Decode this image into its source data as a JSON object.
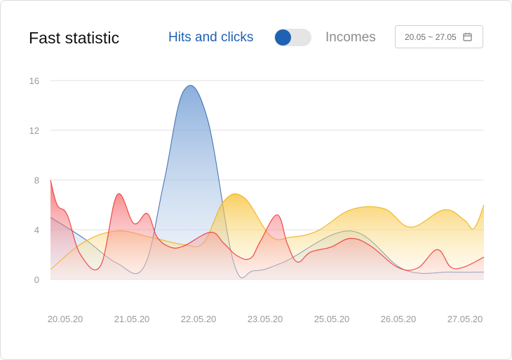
{
  "header": {
    "title": "Fast statistic",
    "toggle_left_label": "Hits and clicks",
    "toggle_right_label": "Incomes",
    "toggle_state": "left",
    "date_range": "20.05 ~ 27.05"
  },
  "icons": {
    "date_picker": "calendar-icon"
  },
  "colors": {
    "accent": "#1f61b2",
    "blue_series": "#6e9bd3",
    "yellow_series": "#f6c02e",
    "red_series": "#f25050"
  },
  "chart_data": {
    "type": "area",
    "title": "",
    "xlabel": "",
    "ylabel": "",
    "x_ticks": [
      "20.05.20",
      "21.05.20",
      "22.05.20",
      "23.05.20",
      "25.05.20",
      "26.05.20",
      "27.05.20"
    ],
    "y_ticks": [
      0,
      4,
      8,
      12,
      16
    ],
    "ylim": [
      0,
      16
    ],
    "grid": true,
    "legend": "none",
    "series": [
      {
        "color": "#6e9bd3",
        "x": [
          0,
          0.5,
          1,
          1.4,
          1.7,
          2.0,
          2.35,
          2.75,
          3.05,
          3.5,
          4.5,
          5.3,
          6.0,
          6.5
        ],
        "values": [
          5.0,
          3.3,
          1.3,
          1.0,
          7.8,
          15.2,
          13.0,
          1.3,
          0.7,
          1.4,
          3.9,
          0.8,
          0.6,
          0.6
        ]
      },
      {
        "color": "#f6c02e",
        "x": [
          0,
          0.5,
          1,
          1.5,
          2.0,
          2.3,
          2.6,
          2.9,
          3.3,
          3.6,
          4.0,
          4.5,
          5.0,
          5.4,
          5.9,
          6.2,
          6.35,
          6.5
        ],
        "values": [
          0.8,
          3.0,
          3.9,
          3.4,
          2.8,
          3.0,
          6.3,
          6.6,
          3.5,
          3.4,
          3.9,
          5.6,
          5.7,
          4.2,
          5.6,
          4.8,
          4.1,
          6.0
        ]
      },
      {
        "color": "#f25050",
        "x": [
          0,
          0.1,
          0.25,
          0.45,
          0.75,
          1.0,
          1.25,
          1.45,
          1.6,
          1.8,
          2.0,
          2.4,
          2.6,
          2.8,
          3.0,
          3.15,
          3.4,
          3.55,
          3.7,
          3.9,
          4.2,
          4.5,
          4.8,
          5.2,
          5.5,
          5.8,
          6.0,
          6.2,
          6.5
        ],
        "values": [
          8.0,
          6.0,
          5.2,
          2.0,
          1.1,
          6.8,
          4.5,
          5.3,
          3.4,
          2.6,
          2.7,
          3.8,
          2.9,
          1.9,
          1.7,
          3.1,
          5.2,
          2.9,
          1.4,
          2.2,
          2.6,
          3.3,
          2.7,
          1.0,
          0.9,
          2.4,
          1.0,
          1.0,
          1.8
        ]
      }
    ]
  }
}
